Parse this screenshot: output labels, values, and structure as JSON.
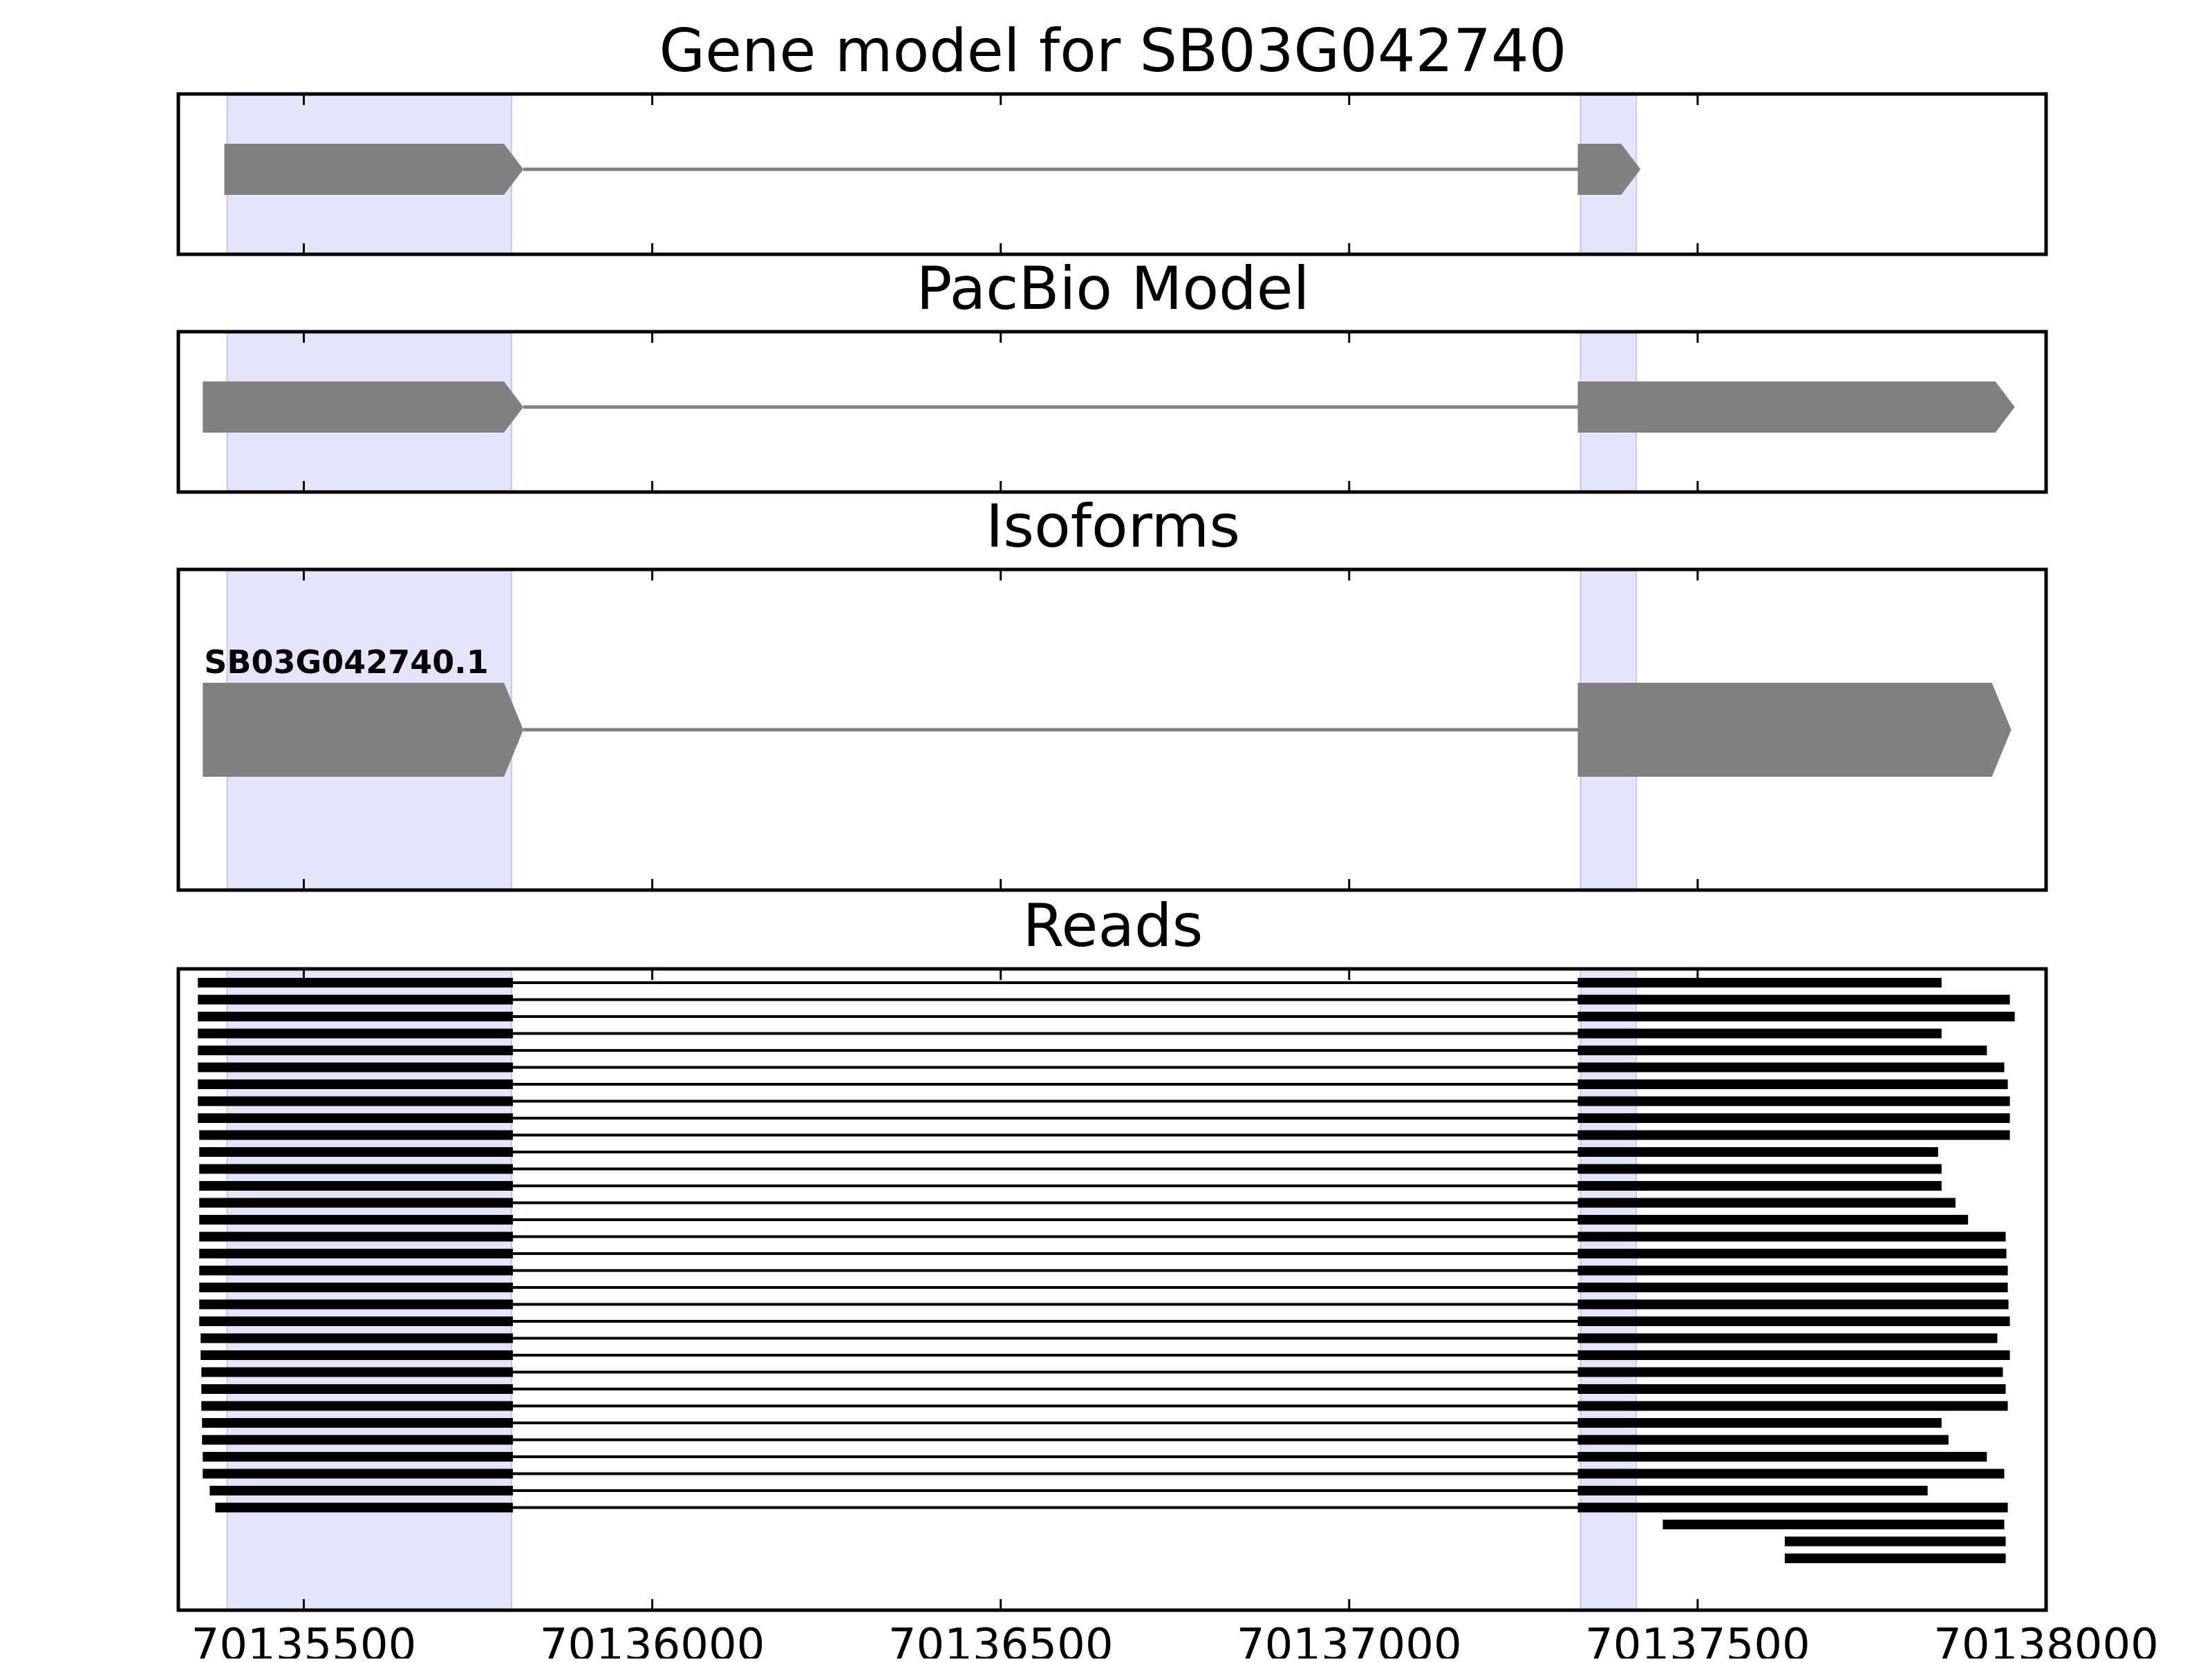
{
  "colors": {
    "exon_fill": "#808080",
    "intron_line": "#808080",
    "read_color": "#000000",
    "highlight_fill": "#e4e4fb",
    "highlight_stroke": "#c8c8ee",
    "frame": "#000000"
  },
  "chart_data": [
    {
      "type": "gene-track",
      "title": "Gene model for SB03G042740",
      "xlim": [
        70135320,
        70138000
      ],
      "highlights": [
        [
          70135390,
          70135798
        ],
        [
          70137332,
          70137412
        ]
      ],
      "features": [
        {
          "exons": [
            [
              70135386,
              70135815
            ],
            [
              70137328,
              70137418
            ]
          ],
          "strand": "+",
          "label": ""
        }
      ]
    },
    {
      "type": "gene-track",
      "title": "PacBio Model",
      "xlim": [
        70135320,
        70138000
      ],
      "highlights": [
        [
          70135390,
          70135798
        ],
        [
          70137332,
          70137412
        ]
      ],
      "features": [
        {
          "exons": [
            [
              70135355,
              70135815
            ],
            [
              70137328,
              70137955
            ]
          ],
          "strand": "+",
          "label": ""
        }
      ]
    },
    {
      "type": "gene-track",
      "title": "Isoforms",
      "xlim": [
        70135320,
        70138000
      ],
      "highlights": [
        [
          70135390,
          70135798
        ],
        [
          70137332,
          70137412
        ]
      ],
      "features": [
        {
          "exons": [
            [
              70135355,
              70135815
            ],
            [
              70137328,
              70137950
            ]
          ],
          "strand": "+",
          "label": "SB03G042740.1"
        }
      ]
    },
    {
      "type": "reads",
      "title": "Reads",
      "xlim": [
        70135320,
        70138000
      ],
      "xticks": [
        "70135500",
        "70136000",
        "70136500",
        "70137000",
        "70137500",
        "70138000"
      ],
      "highlights": [
        [
          70135390,
          70135798
        ],
        [
          70137332,
          70137412
        ]
      ],
      "reads": [
        {
          "exons": [
            [
              70135348,
              70135800
            ],
            [
              70137328,
              70137850
            ]
          ]
        },
        {
          "exons": [
            [
              70135348,
              70135800
            ],
            [
              70137328,
              70137948
            ]
          ]
        },
        {
          "exons": [
            [
              70135348,
              70135800
            ],
            [
              70137328,
              70137955
            ]
          ]
        },
        {
          "exons": [
            [
              70135348,
              70135800
            ],
            [
              70137328,
              70137850
            ]
          ]
        },
        {
          "exons": [
            [
              70135348,
              70135800
            ],
            [
              70137328,
              70137915
            ]
          ]
        },
        {
          "exons": [
            [
              70135348,
              70135800
            ],
            [
              70137328,
              70137940
            ]
          ]
        },
        {
          "exons": [
            [
              70135348,
              70135800
            ],
            [
              70137328,
              70137945
            ]
          ]
        },
        {
          "exons": [
            [
              70135348,
              70135800
            ],
            [
              70137328,
              70137948
            ]
          ]
        },
        {
          "exons": [
            [
              70135348,
              70135800
            ],
            [
              70137328,
              70137948
            ]
          ]
        },
        {
          "exons": [
            [
              70135350,
              70135800
            ],
            [
              70137328,
              70137948
            ]
          ]
        },
        {
          "exons": [
            [
              70135350,
              70135800
            ],
            [
              70137328,
              70137845
            ]
          ]
        },
        {
          "exons": [
            [
              70135350,
              70135800
            ],
            [
              70137328,
              70137850
            ]
          ]
        },
        {
          "exons": [
            [
              70135350,
              70135800
            ],
            [
              70137328,
              70137850
            ]
          ]
        },
        {
          "exons": [
            [
              70135350,
              70135800
            ],
            [
              70137328,
              70137870
            ]
          ]
        },
        {
          "exons": [
            [
              70135350,
              70135800
            ],
            [
              70137328,
              70137888
            ]
          ]
        },
        {
          "exons": [
            [
              70135350,
              70135800
            ],
            [
              70137328,
              70137942
            ]
          ]
        },
        {
          "exons": [
            [
              70135350,
              70135800
            ],
            [
              70137328,
              70137943
            ]
          ]
        },
        {
          "exons": [
            [
              70135350,
              70135800
            ],
            [
              70137328,
              70137945
            ]
          ]
        },
        {
          "exons": [
            [
              70135350,
              70135800
            ],
            [
              70137328,
              70137945
            ]
          ]
        },
        {
          "exons": [
            [
              70135350,
              70135800
            ],
            [
              70137328,
              70137946
            ]
          ]
        },
        {
          "exons": [
            [
              70135350,
              70135800
            ],
            [
              70137328,
              70137948
            ]
          ]
        },
        {
          "exons": [
            [
              70135352,
              70135800
            ],
            [
              70137328,
              70137930
            ]
          ]
        },
        {
          "exons": [
            [
              70135352,
              70135800
            ],
            [
              70137328,
              70137948
            ]
          ]
        },
        {
          "exons": [
            [
              70135353,
              70135800
            ],
            [
              70137328,
              70137938
            ]
          ]
        },
        {
          "exons": [
            [
              70135353,
              70135800
            ],
            [
              70137328,
              70137942
            ]
          ]
        },
        {
          "exons": [
            [
              70135353,
              70135800
            ],
            [
              70137328,
              70137945
            ]
          ]
        },
        {
          "exons": [
            [
              70135354,
              70135800
            ],
            [
              70137328,
              70137850
            ]
          ]
        },
        {
          "exons": [
            [
              70135354,
              70135800
            ],
            [
              70137328,
              70137860
            ]
          ]
        },
        {
          "exons": [
            [
              70135355,
              70135800
            ],
            [
              70137328,
              70137915
            ]
          ]
        },
        {
          "exons": [
            [
              70135355,
              70135800
            ],
            [
              70137328,
              70137940
            ]
          ]
        },
        {
          "exons": [
            [
              70135365,
              70135800
            ],
            [
              70137328,
              70137830
            ]
          ]
        },
        {
          "exons": [
            [
              70135373,
              70135800
            ],
            [
              70137328,
              70137945
            ]
          ]
        },
        {
          "exons": [
            [
              70137450,
              70137940
            ]
          ]
        },
        {
          "exons": [
            [
              70137625,
              70137942
            ]
          ]
        },
        {
          "exons": [
            [
              70137625,
              70137942
            ]
          ]
        }
      ]
    }
  ]
}
